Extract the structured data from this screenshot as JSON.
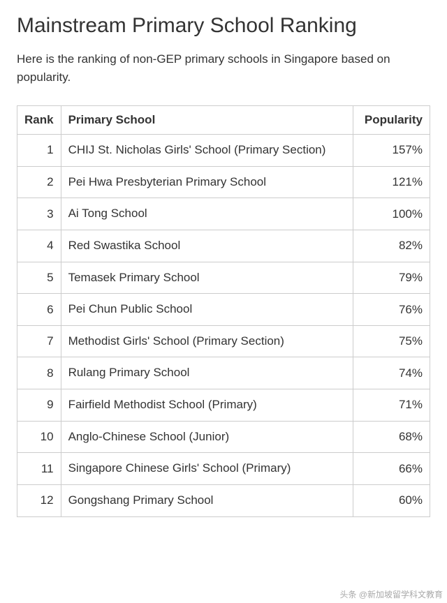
{
  "title": "Mainstream Primary School Ranking",
  "intro": "Here is the ranking of non-GEP primary schools in Singapore based on popularity.",
  "table": {
    "columns": {
      "rank": "Rank",
      "school": "Primary School",
      "popularity": "Popularity"
    },
    "rows": [
      {
        "rank": "1",
        "school": "CHIJ St. Nicholas Girls' School (Primary Section)",
        "popularity": "157%"
      },
      {
        "rank": "2",
        "school": "Pei Hwa Presbyterian Primary School",
        "popularity": "121%"
      },
      {
        "rank": "3",
        "school": "Ai Tong School",
        "popularity": "100%"
      },
      {
        "rank": "4",
        "school": "Red Swastika School",
        "popularity": "82%"
      },
      {
        "rank": "5",
        "school": "Temasek Primary School",
        "popularity": "79%"
      },
      {
        "rank": "6",
        "school": "Pei Chun Public School",
        "popularity": "76%"
      },
      {
        "rank": "7",
        "school": "Methodist Girls' School (Primary Section)",
        "popularity": "75%"
      },
      {
        "rank": "8",
        "school": "Rulang Primary School",
        "popularity": "74%"
      },
      {
        "rank": "9",
        "school": "Fairfield Methodist School (Primary)",
        "popularity": "71%"
      },
      {
        "rank": "10",
        "school": "Anglo-Chinese School (Junior)",
        "popularity": "68%"
      },
      {
        "rank": "11",
        "school": "Singapore Chinese Girls' School (Primary)",
        "popularity": "66%"
      },
      {
        "rank": "12",
        "school": "Gongshang Primary School",
        "popularity": "60%"
      }
    ]
  },
  "watermark": "头条 @新加坡留学科文教育"
}
